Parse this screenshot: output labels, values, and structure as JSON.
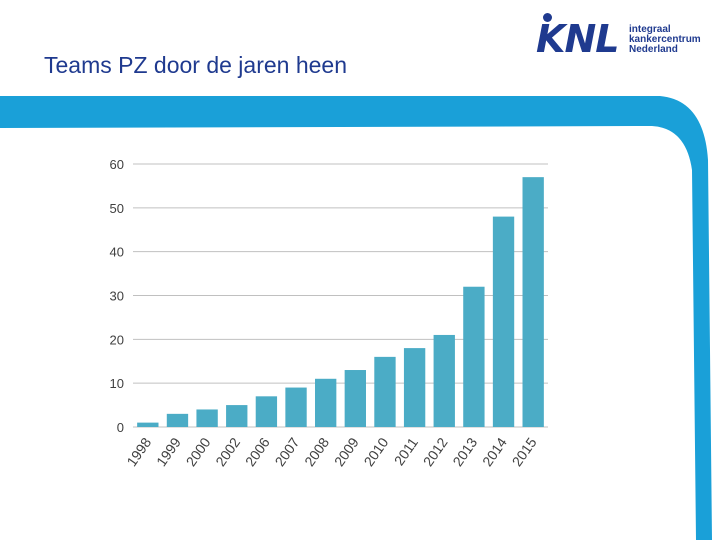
{
  "slide": {
    "title": "Teams PZ door de jaren heen"
  },
  "logo": {
    "mark": "KNL",
    "lines": [
      "integraal",
      "kankercentrum",
      "Nederland"
    ]
  },
  "colors": {
    "title": "#1f3a8f",
    "bars": "#4bacc6",
    "frame": "#1aa0d8",
    "grid": "#c0c0c0",
    "axis_text": "#404040"
  },
  "chart_data": {
    "type": "bar",
    "categories": [
      "1998",
      "1999",
      "2000",
      "2002",
      "2006",
      "2007",
      "2008",
      "2009",
      "2010",
      "2011",
      "2012",
      "2013",
      "2014",
      "2015"
    ],
    "values": [
      1,
      3,
      4,
      5,
      7,
      9,
      11,
      13,
      16,
      18,
      21,
      32,
      48,
      57
    ],
    "ylim": [
      0,
      60
    ],
    "yticks": [
      0,
      10,
      20,
      30,
      40,
      50,
      60
    ],
    "grid": true,
    "legend": "none"
  }
}
